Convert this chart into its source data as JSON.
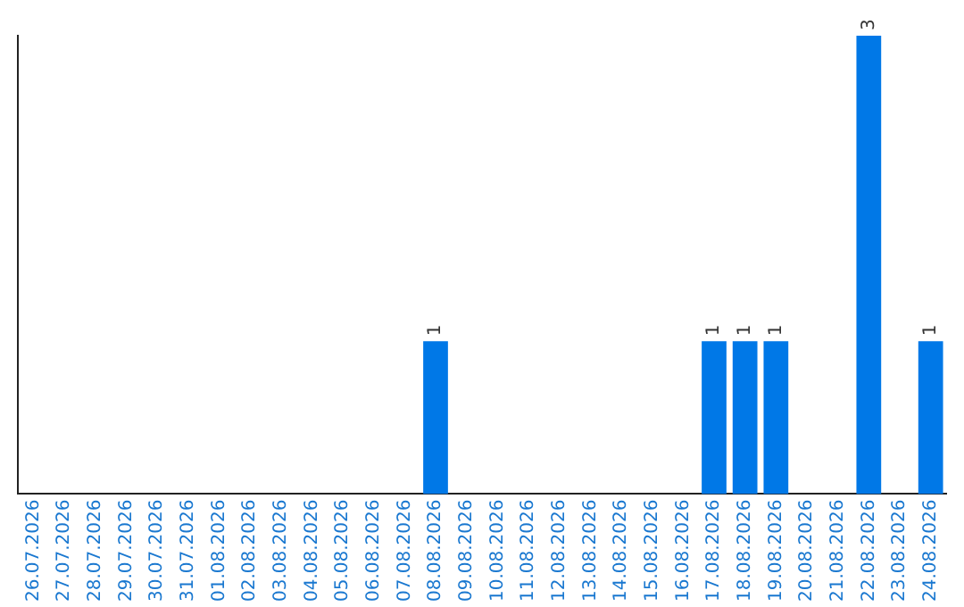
{
  "chart_data": {
    "type": "bar",
    "categories": [
      "26.07.2026",
      "27.07.2026",
      "28.07.2026",
      "29.07.2026",
      "30.07.2026",
      "31.07.2026",
      "01.08.2026",
      "02.08.2026",
      "03.08.2026",
      "04.08.2026",
      "05.08.2026",
      "06.08.2026",
      "07.08.2026",
      "08.08.2026",
      "09.08.2026",
      "10.08.2026",
      "11.08.2026",
      "12.08.2026",
      "13.08.2026",
      "14.08.2026",
      "15.08.2026",
      "16.08.2026",
      "17.08.2026",
      "18.08.2026",
      "19.08.2026",
      "20.08.2026",
      "21.08.2026",
      "22.08.2026",
      "23.08.2026",
      "24.08.2026"
    ],
    "values": [
      null,
      null,
      null,
      null,
      null,
      null,
      null,
      null,
      null,
      null,
      null,
      null,
      null,
      1,
      null,
      null,
      null,
      null,
      null,
      null,
      null,
      null,
      1,
      1,
      1,
      null,
      null,
      3,
      null,
      1
    ],
    "value_labels": [
      null,
      null,
      null,
      null,
      null,
      null,
      null,
      null,
      null,
      null,
      null,
      null,
      null,
      "1",
      null,
      null,
      null,
      null,
      null,
      null,
      null,
      null,
      "1",
      "1",
      "1",
      null,
      null,
      "3",
      null,
      "1"
    ],
    "color": "#0078e7",
    "tick_labels": "x",
    "grid": false,
    "legend": false
  }
}
